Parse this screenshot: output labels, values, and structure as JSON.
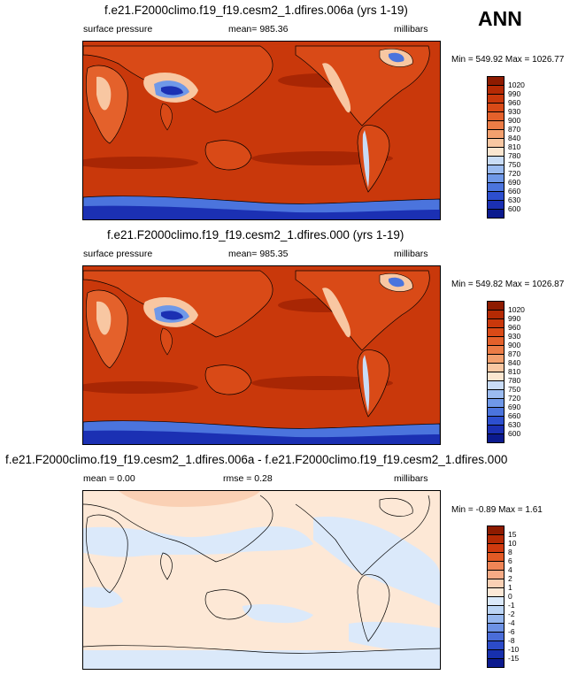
{
  "season": "ANN",
  "panels": [
    {
      "title": "f.e21.F2000climo.f19_f19.cesm2_1.dfires.006a (yrs 1-19)",
      "left_label": "surface pressure",
      "center_label": "mean= 985.36",
      "right_label": "millibars",
      "minmax": "Min = 549.92 Max = 1026.77",
      "colorbar_labels": [
        "1020",
        "990",
        "960",
        "930",
        "900",
        "870",
        "840",
        "810",
        "780",
        "750",
        "720",
        "690",
        "660",
        "630",
        "600"
      ],
      "colorbar_colors": [
        "#8e1b00",
        "#b52a04",
        "#c9380b",
        "#d94a17",
        "#e4612b",
        "#ec7c46",
        "#f3a06e",
        "#f8c7a2",
        "#fbe6d0",
        "#c9dcf6",
        "#9bbbf0",
        "#6f98e8",
        "#4b74dd",
        "#2d4fcf",
        "#1b30b3",
        "#0b1a8e"
      ]
    },
    {
      "title": "f.e21.F2000climo.f19_f19.cesm2_1.dfires.000 (yrs 1-19)",
      "left_label": "surface pressure",
      "center_label": "mean= 985.35",
      "right_label": "millibars",
      "minmax": "Min = 549.82 Max = 1026.87",
      "colorbar_labels": [
        "1020",
        "990",
        "960",
        "930",
        "900",
        "870",
        "840",
        "810",
        "780",
        "750",
        "720",
        "690",
        "660",
        "630",
        "600"
      ],
      "colorbar_colors": [
        "#8e1b00",
        "#b52a04",
        "#c9380b",
        "#d94a17",
        "#e4612b",
        "#ec7c46",
        "#f3a06e",
        "#f8c7a2",
        "#fbe6d0",
        "#c9dcf6",
        "#9bbbf0",
        "#6f98e8",
        "#4b74dd",
        "#2d4fcf",
        "#1b30b3",
        "#0b1a8e"
      ]
    },
    {
      "title": "f.e21.F2000climo.f19_f19.cesm2_1.dfires.006a - f.e21.F2000climo.f19_f19.cesm2_1.dfires.000",
      "left_label": "mean =   0.00",
      "center_label": "rmse =   0.28",
      "right_label": "millibars",
      "minmax": "Min =  -0.89 Max =   1.61",
      "colorbar_labels": [
        "15",
        "10",
        "8",
        "6",
        "4",
        "2",
        "1",
        "0",
        "-1",
        "-2",
        "-4",
        "-6",
        "-8",
        "-10",
        "-15"
      ],
      "colorbar_colors": [
        "#8e1b00",
        "#b52a04",
        "#d03a0e",
        "#e25a25",
        "#ef8556",
        "#f6ab86",
        "#fad0b4",
        "#fde8d6",
        "#dbe9fa",
        "#bcd5f5",
        "#96b7ee",
        "#6d92e4",
        "#4a6dd8",
        "#2c4bc8",
        "#1730ad",
        "#0b1a8e"
      ]
    }
  ]
}
